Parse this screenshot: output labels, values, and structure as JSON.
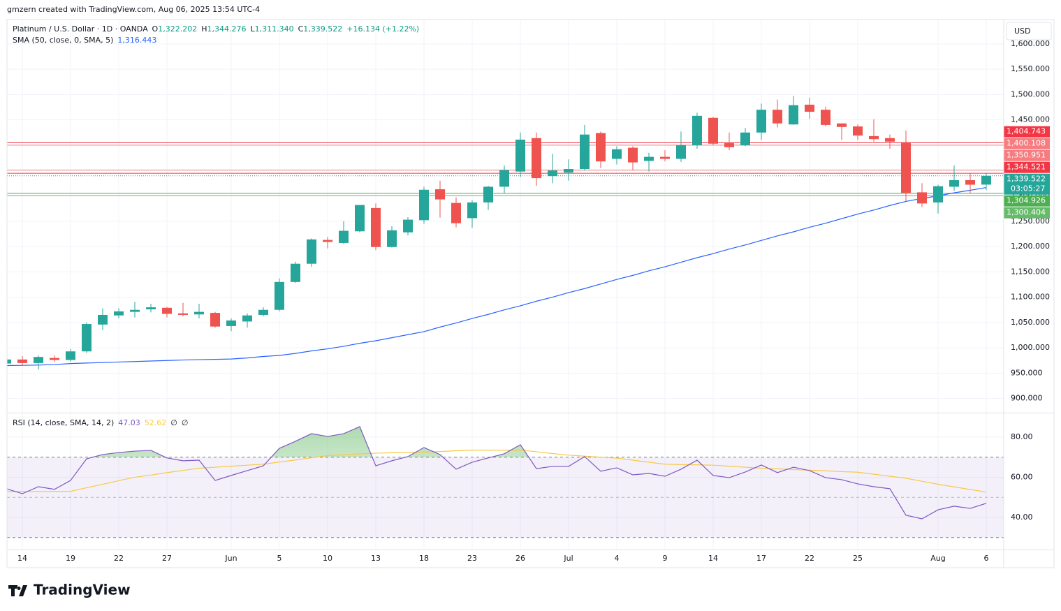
{
  "attribution": "gmzern created with TradingView.com, Aug 06, 2025 13:54 UTC-4",
  "footer": {
    "logo": "TradingView"
  },
  "chart_data": [
    {
      "type": "candlestick",
      "currency": "USD",
      "legend": {
        "symbol": "Platinum / U.S. Dollar · 1D · OANDA",
        "open_label": "O",
        "open": "1,322.202",
        "high_label": "H",
        "high": "1,344.276",
        "low_label": "L",
        "low": "1,311.340",
        "close_label": "C",
        "close": "1,339.522",
        "change": "+16.134 (+1.22%)"
      },
      "sma_legend": "SMA (50, close, 0, SMA, 5)",
      "sma_value": "1,316.443",
      "categories": [
        null,
        "14",
        null,
        null,
        "19",
        null,
        null,
        "22",
        null,
        null,
        "27",
        null,
        null,
        null,
        "Jun",
        null,
        null,
        "5",
        null,
        null,
        "10",
        null,
        null,
        "13",
        null,
        null,
        "18",
        null,
        null,
        "23",
        null,
        null,
        "26",
        null,
        null,
        "Jul",
        null,
        null,
        "4",
        null,
        null,
        "9",
        null,
        null,
        "14",
        null,
        null,
        "17",
        null,
        null,
        "22",
        null,
        null,
        "25",
        null,
        null,
        null,
        null,
        "Aug",
        null,
        null,
        "6"
      ],
      "open": [
        969,
        977,
        970,
        980,
        976,
        993,
        1046,
        1064,
        1071,
        1076,
        1079,
        1068,
        1066,
        1069,
        1043,
        1052,
        1065,
        1075,
        1130,
        1166,
        1213,
        1207,
        1230,
        1276,
        1199,
        1228,
        1252,
        1313,
        1286,
        1256,
        1287,
        1318,
        1348,
        1414,
        1339,
        1346,
        1353,
        1424,
        1373,
        1395,
        1369,
        1377,
        1373,
        1400,
        1454,
        1404,
        1400,
        1425,
        1470,
        1441,
        1480,
        1470,
        1443,
        1437,
        1418,
        1414,
        1406,
        1307,
        1287,
        1318,
        1331,
        1322.202
      ],
      "high": [
        978,
        984,
        985,
        985,
        998,
        1050,
        1078,
        1078,
        1091,
        1087,
        1081,
        1089,
        1087,
        1071,
        1058,
        1068,
        1080,
        1137,
        1170,
        1216,
        1219,
        1250,
        1282,
        1285,
        1240,
        1258,
        1318,
        1330,
        1297,
        1291,
        1320,
        1360,
        1425,
        1425,
        1383,
        1372,
        1440,
        1427,
        1398,
        1398,
        1385,
        1390,
        1427,
        1464,
        1456,
        1425,
        1434,
        1482,
        1490,
        1497,
        1494,
        1476,
        1443,
        1441,
        1451,
        1421,
        1429,
        1325,
        1322,
        1360,
        1345,
        1344.276
      ],
      "low": [
        966,
        966,
        957,
        972,
        973,
        990,
        1035,
        1058,
        1060,
        1070,
        1060,
        1062,
        1058,
        1040,
        1033,
        1040,
        1062,
        1072,
        1128,
        1160,
        1196,
        1205,
        1228,
        1193,
        1198,
        1222,
        1245,
        1257,
        1238,
        1237,
        1272,
        1305,
        1337,
        1320,
        1325,
        1330,
        1350,
        1355,
        1362,
        1350,
        1348,
        1368,
        1367,
        1393,
        1400,
        1390,
        1398,
        1410,
        1435,
        1440,
        1452,
        1437,
        1410,
        1410,
        1407,
        1393,
        1290,
        1278,
        1265,
        1310,
        1305,
        1311.34
      ],
      "close": [
        977,
        970,
        982,
        976,
        993,
        1047,
        1065,
        1072,
        1075,
        1080,
        1067,
        1065,
        1071,
        1042,
        1054,
        1064,
        1075,
        1130,
        1166,
        1214,
        1209,
        1231,
        1282,
        1199,
        1232,
        1253,
        1312,
        1293,
        1246,
        1287,
        1318,
        1351,
        1411,
        1335,
        1350,
        1353,
        1421,
        1368,
        1392,
        1366,
        1377,
        1373,
        1400,
        1458,
        1403,
        1396,
        1425,
        1470,
        1443,
        1479,
        1466,
        1440,
        1436,
        1419,
        1412,
        1407,
        1306,
        1285,
        1319,
        1331,
        1322,
        1339.522
      ],
      "up_color": "#26a69a",
      "down_color": "#ef5350",
      "sma": {
        "color": "#2962ff",
        "values": [
          965,
          965.5,
          966,
          967,
          969,
          970,
          971,
          972,
          973,
          974,
          975,
          976,
          976.7,
          977.3,
          978,
          980,
          983,
          985,
          989,
          994,
          998,
          1003,
          1009,
          1014,
          1020,
          1026,
          1032,
          1041,
          1049,
          1058,
          1066,
          1075,
          1083,
          1092,
          1100,
          1109,
          1117,
          1126,
          1135,
          1143,
          1152,
          1160,
          1169,
          1178,
          1186,
          1195,
          1203,
          1212,
          1221,
          1229,
          1238,
          1246,
          1255,
          1264,
          1272,
          1281,
          1289,
          1295,
          1300,
          1306,
          1311,
          1316.443
        ]
      },
      "ylim": [
        872,
        1648
      ],
      "yticks": [
        {
          "value": 900,
          "label": "900.000"
        },
        {
          "value": 950,
          "label": "950.000"
        },
        {
          "value": 1000,
          "label": "1,000.000"
        },
        {
          "value": 1050,
          "label": "1,050.000"
        },
        {
          "value": 1100,
          "label": "1,100.000"
        },
        {
          "value": 1150,
          "label": "1,150.000"
        },
        {
          "value": 1200,
          "label": "1,200.000"
        },
        {
          "value": 1250,
          "label": "1,250.000"
        },
        {
          "value": 1300,
          "label": "1,300.000"
        },
        {
          "value": 1350,
          "label": "1,350.000"
        },
        {
          "value": 1400,
          "label": "1,400.000"
        },
        {
          "value": 1450,
          "label": "1,450.000"
        },
        {
          "value": 1500,
          "label": "1,500.000"
        },
        {
          "value": 1550,
          "label": "1,550.000"
        },
        {
          "value": 1600,
          "label": "1,600.000"
        }
      ],
      "levels": [
        {
          "value": 1404.743,
          "label": "1,404.743",
          "color": "#f23645"
        },
        {
          "value": 1400.108,
          "label": "1,400.108",
          "color": "#f77c80"
        },
        {
          "value": 1350.951,
          "label": "1,350.951",
          "color": "#f77c80"
        },
        {
          "value": 1344.521,
          "label": "1,344.521",
          "color": "#f23645"
        },
        {
          "value": 1304.926,
          "label": "1,304.926",
          "color": "#4caf50"
        },
        {
          "value": 1300.404,
          "label": "1,300.404",
          "color": "#66bb6a"
        }
      ],
      "last_price": {
        "value": 1339.522,
        "label": "1,339.522",
        "countdown": "03:05:27",
        "color": "#26a69a"
      },
      "grid": true
    },
    {
      "type": "line",
      "legend": "RSI (14, close, SMA, 14, 2)",
      "legend_values": [
        "47.03",
        "52.62"
      ],
      "legend_extra": [
        "∅",
        "∅"
      ],
      "series": [
        {
          "color": "#7e57c2",
          "values": [
            54.3,
            51.8,
            55.3,
            54,
            58.4,
            69.2,
            71.3,
            72.3,
            73,
            73.4,
            69.6,
            68.2,
            68.5,
            58.4,
            60.9,
            63.3,
            65.7,
            74.4,
            77.9,
            81.7,
            80.3,
            81.7,
            85.2,
            65.7,
            68.2,
            70.3,
            74.8,
            71.3,
            64,
            67.5,
            69.6,
            71.7,
            76.2,
            64.3,
            65.4,
            65.4,
            70.3,
            63,
            64.7,
            61.2,
            61.9,
            60.5,
            64,
            68.5,
            60.9,
            59.8,
            62.6,
            66.1,
            62.3,
            65,
            63.3,
            59.8,
            58.8,
            56.7,
            55.3,
            54.3,
            41.1,
            39.3,
            43.8,
            45.6,
            44.5,
            47.03
          ]
        },
        {
          "color": "#f7c948",
          "values": [
            52.9,
            52.9,
            52.9,
            53,
            53,
            54.8,
            56.5,
            58.3,
            60,
            61.1,
            62.3,
            63.4,
            64.5,
            65,
            65.5,
            66,
            66.5,
            67.6,
            68.6,
            69.7,
            70.8,
            71.2,
            71.6,
            72,
            72.2,
            72.3,
            72.5,
            72.8,
            73.2,
            73.5,
            73.5,
            73.5,
            73.5,
            72.7,
            71.8,
            71,
            70.5,
            70,
            69.5,
            68.5,
            67.5,
            66.5,
            66.3,
            66.2,
            66,
            65.5,
            65,
            64.5,
            64.2,
            63.8,
            63.5,
            63.2,
            62.8,
            62.5,
            61.5,
            60.5,
            59.5,
            58,
            56.5,
            55.2,
            53.9,
            52.62
          ]
        }
      ],
      "band": [
        30,
        70
      ],
      "midline": 50,
      "ylim": [
        24,
        91.8
      ],
      "yticks": [
        {
          "value": 40,
          "label": "40.00"
        },
        {
          "value": 60,
          "label": "60.00"
        },
        {
          "value": 80,
          "label": "80.00"
        }
      ],
      "grid": true
    }
  ]
}
